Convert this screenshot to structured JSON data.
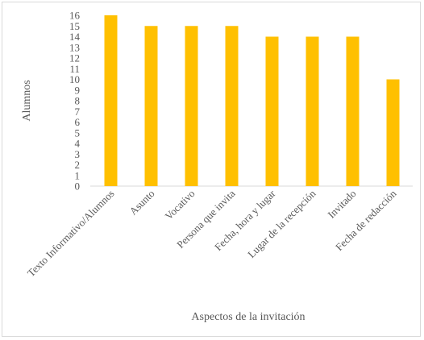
{
  "chart_data": {
    "type": "bar",
    "categories": [
      "Texto Informativo/Alumnos",
      "Asunto",
      "Vocativo",
      "Persona que invita",
      "Fecha, hora y lugar",
      "Lugar de la recepción",
      "Invitado",
      "Fecha de redacción"
    ],
    "values": [
      16,
      15,
      15,
      15,
      14,
      14,
      14,
      10
    ],
    "xlabel": "Aspectos de la invitación",
    "ylabel": "Alumnos",
    "ylim": [
      0,
      16
    ],
    "yticks": [
      0,
      1,
      2,
      3,
      4,
      5,
      6,
      7,
      8,
      9,
      10,
      11,
      12,
      13,
      14,
      15,
      16
    ],
    "bar_color": "#FFC000",
    "grid": false,
    "legend": "none"
  }
}
